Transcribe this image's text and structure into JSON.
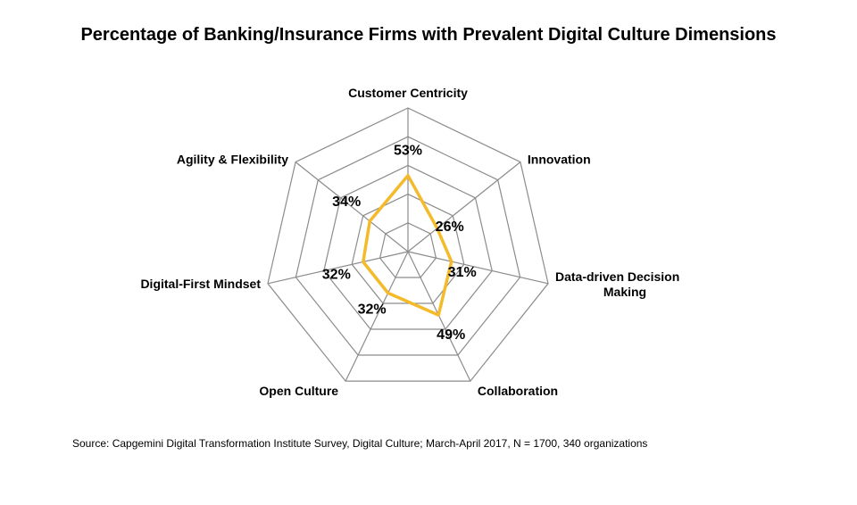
{
  "chart_data": {
    "type": "radar",
    "title": "Percentage of Banking/Insurance Firms with Prevalent Digital Culture Dimensions",
    "categories": [
      [
        "Customer Centricity"
      ],
      [
        "Innovation"
      ],
      [
        "Data-driven Decision",
        "Making"
      ],
      [
        "Collaboration"
      ],
      [
        "Open Culture"
      ],
      [
        "Digital-First Mindset"
      ],
      [
        "Agility & Flexibility"
      ]
    ],
    "values": [
      53,
      26,
      31,
      49,
      32,
      32,
      34
    ],
    "value_labels": [
      "53%",
      "26%",
      "31%",
      "49%",
      "32%",
      "32%",
      "34%"
    ],
    "rlim": [
      0,
      100
    ],
    "grid_levels": 5,
    "grid": true,
    "legend": "none",
    "series_color": "#F4BA2A",
    "grid_color": "#8C8C8C"
  },
  "source_note": "Source: Capgemini Digital Transformation Institute Survey, Digital Culture; March-April 2017, N = 1700, 340 organizations"
}
